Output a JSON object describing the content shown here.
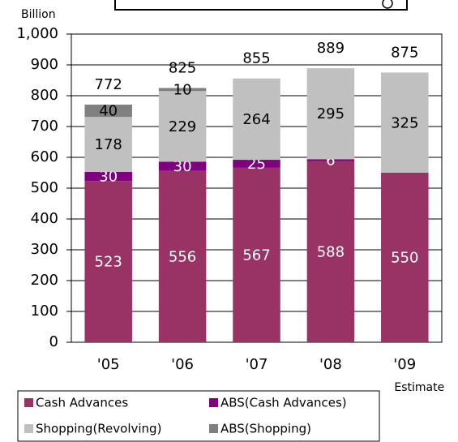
{
  "chart_data": {
    "type": "stacked_bar",
    "y_label": "Billion",
    "categories": [
      "'05",
      "'06",
      "'07",
      "'08",
      "'09"
    ],
    "annotation": "Estimate",
    "series": [
      {
        "name": "Cash Advances",
        "color": "#993366",
        "values": [
          523,
          556,
          567,
          588,
          550
        ]
      },
      {
        "name": "ABS(Cash Advances)",
        "color": "#800080",
        "values": [
          30,
          30,
          25,
          6,
          null
        ]
      },
      {
        "name": "Shopping(Revolving)",
        "color": "#c0c0c0",
        "values": [
          178,
          229,
          264,
          295,
          325
        ]
      },
      {
        "name": "ABS(Shopping)",
        "color": "#808080",
        "values": [
          40,
          10,
          null,
          null,
          null
        ]
      }
    ],
    "totals": [
      772,
      825,
      855,
      889,
      875
    ],
    "ylim": [
      0,
      1000
    ],
    "yticks": [
      0,
      100,
      200,
      300,
      400,
      500,
      600,
      700,
      800,
      900,
      {
        "value": 1000,
        "label": "1,000"
      }
    ],
    "grid": true
  }
}
